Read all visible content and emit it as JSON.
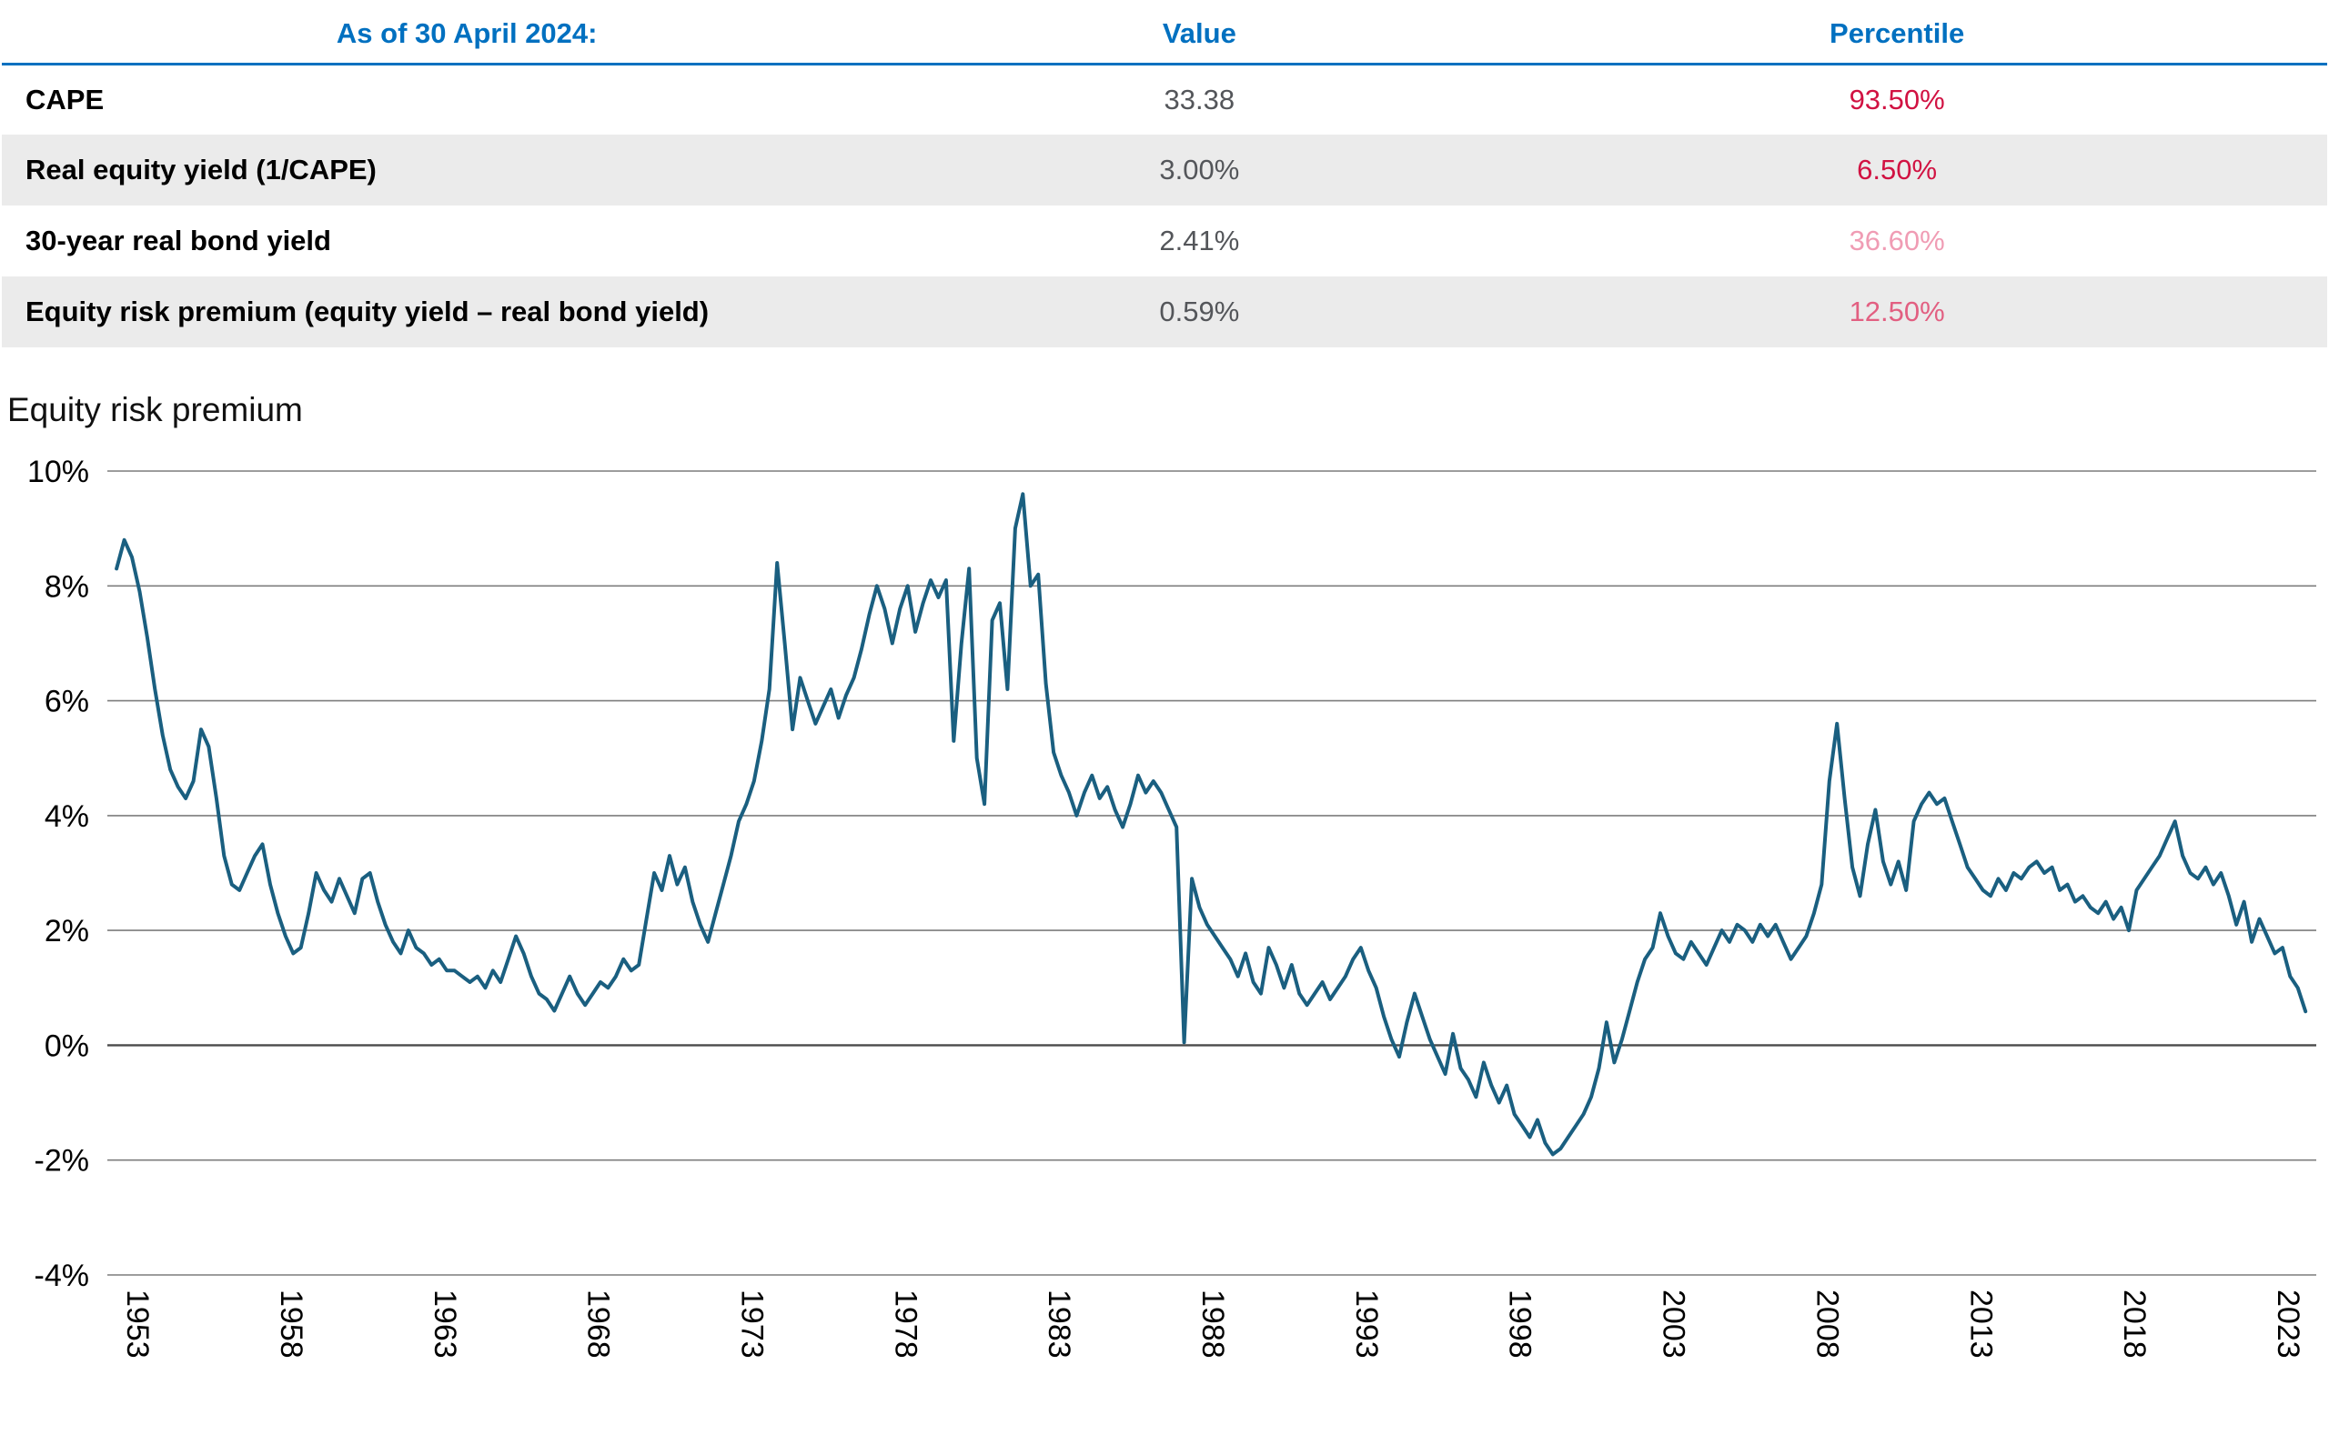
{
  "table": {
    "headers": {
      "label": "As of 30 April 2024:",
      "value": "Value",
      "percentile": "Percentile"
    },
    "rows": [
      {
        "label": "CAPE",
        "value": "33.38",
        "percentile": "93.50%",
        "percentile_color": "#d11242"
      },
      {
        "label": "Real equity yield (1/CAPE)",
        "value": "3.00%",
        "percentile": "6.50%",
        "percentile_color": "#d11242"
      },
      {
        "label": "30-year real bond yield",
        "value": "2.41%",
        "percentile": "36.60%",
        "percentile_color": "#f09cb4"
      },
      {
        "label": "Equity risk premium (equity yield – real bond yield)",
        "value": "0.59%",
        "percentile": "12.50%",
        "percentile_color": "#e25f81"
      }
    ]
  },
  "styles": {
    "header_blue": "#0070c0",
    "value_color": "#54565a",
    "row_alt_bg": "#ebebeb"
  },
  "chart_data": {
    "type": "line",
    "title": "Equity risk premium",
    "xlabel": "",
    "ylabel": "",
    "xlim": [
      1952.7,
      2024.6
    ],
    "ylim": [
      -4,
      10
    ],
    "grid": true,
    "legend": "none",
    "layout": {
      "grid_color": "#7d7d7d",
      "zero_line_color": "#4a4a4a"
    },
    "x_ticks": [
      1953,
      1958,
      1963,
      1968,
      1973,
      1978,
      1983,
      1988,
      1993,
      1998,
      2003,
      2008,
      2013,
      2018,
      2023
    ],
    "y_ticks": [
      {
        "v": 10,
        "label": "10%"
      },
      {
        "v": 8,
        "label": "8%"
      },
      {
        "v": 6,
        "label": "6%"
      },
      {
        "v": 4,
        "label": "4%"
      },
      {
        "v": 2,
        "label": "2%"
      },
      {
        "v": 0,
        "label": "0%"
      },
      {
        "v": -2,
        "label": "-2%"
      },
      {
        "v": -4,
        "label": "-4%"
      }
    ],
    "series": [
      {
        "name": "Equity risk premium",
        "color": "#1a5f80",
        "start_year": 1953,
        "step_years": 0.25,
        "unit": "percent",
        "values": [
          8.3,
          8.8,
          8.5,
          7.9,
          7.1,
          6.2,
          5.4,
          4.8,
          4.5,
          4.3,
          4.6,
          5.5,
          5.2,
          4.3,
          3.3,
          2.8,
          2.7,
          3.0,
          3.3,
          3.5,
          2.8,
          2.3,
          1.9,
          1.6,
          1.7,
          2.3,
          3.0,
          2.7,
          2.5,
          2.9,
          2.6,
          2.3,
          2.9,
          3.0,
          2.5,
          2.1,
          1.8,
          1.6,
          2.0,
          1.7,
          1.6,
          1.4,
          1.5,
          1.3,
          1.3,
          1.2,
          1.1,
          1.2,
          1.0,
          1.3,
          1.1,
          1.5,
          1.9,
          1.6,
          1.2,
          0.9,
          0.8,
          0.6,
          0.9,
          1.2,
          0.9,
          0.7,
          0.9,
          1.1,
          1.0,
          1.2,
          1.5,
          1.3,
          1.4,
          2.2,
          3.0,
          2.7,
          3.3,
          2.8,
          3.1,
          2.5,
          2.1,
          1.8,
          2.3,
          2.8,
          3.3,
          3.9,
          4.2,
          4.6,
          5.3,
          6.2,
          8.4,
          7.0,
          5.5,
          6.4,
          6.0,
          5.6,
          5.9,
          6.2,
          5.7,
          6.1,
          6.4,
          6.9,
          7.5,
          8.0,
          7.6,
          7.0,
          7.6,
          8.0,
          7.2,
          7.7,
          8.1,
          7.8,
          8.1,
          5.3,
          7.0,
          8.3,
          5.0,
          4.2,
          7.4,
          7.7,
          6.2,
          9.0,
          9.6,
          8.0,
          8.2,
          6.3,
          5.1,
          4.7,
          4.4,
          4.0,
          4.4,
          4.7,
          4.3,
          4.5,
          4.1,
          3.8,
          4.2,
          4.7,
          4.4,
          4.6,
          4.4,
          4.1,
          3.8,
          0.05,
          2.9,
          2.4,
          2.1,
          1.9,
          1.7,
          1.5,
          1.2,
          1.6,
          1.1,
          0.9,
          1.7,
          1.4,
          1.0,
          1.4,
          0.9,
          0.7,
          0.9,
          1.1,
          0.8,
          1.0,
          1.2,
          1.5,
          1.7,
          1.3,
          1.0,
          0.5,
          0.1,
          -0.2,
          0.4,
          0.9,
          0.5,
          0.1,
          -0.2,
          -0.5,
          0.2,
          -0.4,
          -0.6,
          -0.9,
          -0.3,
          -0.7,
          -1.0,
          -0.7,
          -1.2,
          -1.4,
          -1.6,
          -1.3,
          -1.7,
          -1.9,
          -1.8,
          -1.6,
          -1.4,
          -1.2,
          -0.9,
          -0.4,
          0.4,
          -0.3,
          0.1,
          0.6,
          1.1,
          1.5,
          1.7,
          2.3,
          1.9,
          1.6,
          1.5,
          1.8,
          1.6,
          1.4,
          1.7,
          2.0,
          1.8,
          2.1,
          2.0,
          1.8,
          2.1,
          1.9,
          2.1,
          1.8,
          1.5,
          1.7,
          1.9,
          2.3,
          2.8,
          4.6,
          5.6,
          4.3,
          3.1,
          2.6,
          3.5,
          4.1,
          3.2,
          2.8,
          3.2,
          2.7,
          3.9,
          4.2,
          4.4,
          4.2,
          4.3,
          3.9,
          3.5,
          3.1,
          2.9,
          2.7,
          2.6,
          2.9,
          2.7,
          3.0,
          2.9,
          3.1,
          3.2,
          3.0,
          3.1,
          2.7,
          2.8,
          2.5,
          2.6,
          2.4,
          2.3,
          2.5,
          2.2,
          2.4,
          2.0,
          2.7,
          2.9,
          3.1,
          3.3,
          3.6,
          3.9,
          3.3,
          3.0,
          2.9,
          3.1,
          2.8,
          3.0,
          2.6,
          2.1,
          2.5,
          1.8,
          2.2,
          1.9,
          1.6,
          1.7,
          1.2,
          1.0,
          0.59
        ]
      }
    ]
  }
}
